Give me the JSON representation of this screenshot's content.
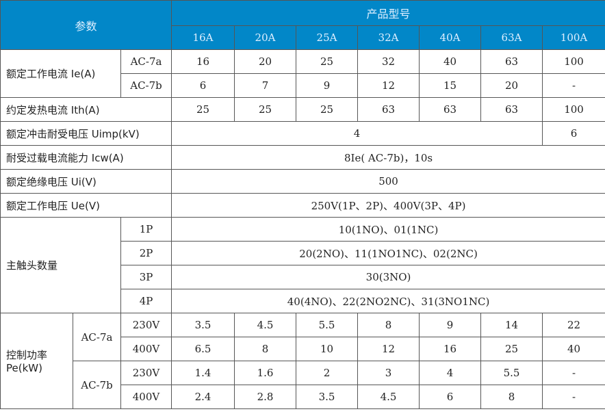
{
  "header": {
    "param_label": "参数",
    "product_label": "产品型号",
    "models": [
      "16A",
      "20A",
      "25A",
      "32A",
      "40A",
      "63A",
      "100A"
    ]
  },
  "rated_current": {
    "label": "额定工作电流 Ie(A)",
    "rows": [
      {
        "cat": "AC-7a",
        "values": [
          "16",
          "20",
          "25",
          "32",
          "40",
          "63",
          "100"
        ]
      },
      {
        "cat": "AC-7b",
        "values": [
          "6",
          "7",
          "9",
          "12",
          "15",
          "20",
          "-"
        ]
      }
    ]
  },
  "thermal_current": {
    "label": "约定发热电流 Ith(A)",
    "values": [
      "25",
      "25",
      "25",
      "63",
      "63",
      "63",
      "100"
    ]
  },
  "impulse_voltage": {
    "label": "额定冲击耐受电压 Uimp(kV)",
    "value_main": "4",
    "value_100A": "6"
  },
  "overload": {
    "label": "耐受过载电流能力 Icw(A)",
    "value": "8Ie( AC-7b)，10s"
  },
  "insulation": {
    "label": "额定绝缘电压 Ui(V)",
    "value": "500"
  },
  "operating_voltage": {
    "label": "额定工作电压 Ue(V)",
    "value": "250V(1P、2P)、400V(3P、4P)"
  },
  "contacts": {
    "label": "主触头数量",
    "rows": [
      {
        "pole": "1P",
        "value": "10(1NO)、01(1NC)"
      },
      {
        "pole": "2P",
        "value": "20(2NO)、11(1NO1NC)、02(2NC)"
      },
      {
        "pole": "3P",
        "value": "30(3NO)"
      },
      {
        "pole": "4P",
        "value": "40(4NO)、22(2NO2NC)、31(3NO1NC)"
      }
    ]
  },
  "control_power": {
    "label_1": "控制功率",
    "label_2": "Pe(kW)",
    "groups": [
      {
        "cat": "AC-7a",
        "rows": [
          {
            "v": "230V",
            "values": [
              "3.5",
              "4.5",
              "5.5",
              "8",
              "9",
              "14",
              "22"
            ]
          },
          {
            "v": "400V",
            "values": [
              "6.5",
              "8",
              "10",
              "12",
              "16",
              "25",
              "40"
            ]
          }
        ]
      },
      {
        "cat": "AC-7b",
        "rows": [
          {
            "v": "230V",
            "values": [
              "1.4",
              "1.6",
              "2",
              "3",
              "4",
              "5.5",
              "-"
            ]
          },
          {
            "v": "400V",
            "values": [
              "2.4",
              "2.8",
              "3.5",
              "4.5",
              "6",
              "8",
              "-"
            ]
          }
        ]
      }
    ]
  }
}
